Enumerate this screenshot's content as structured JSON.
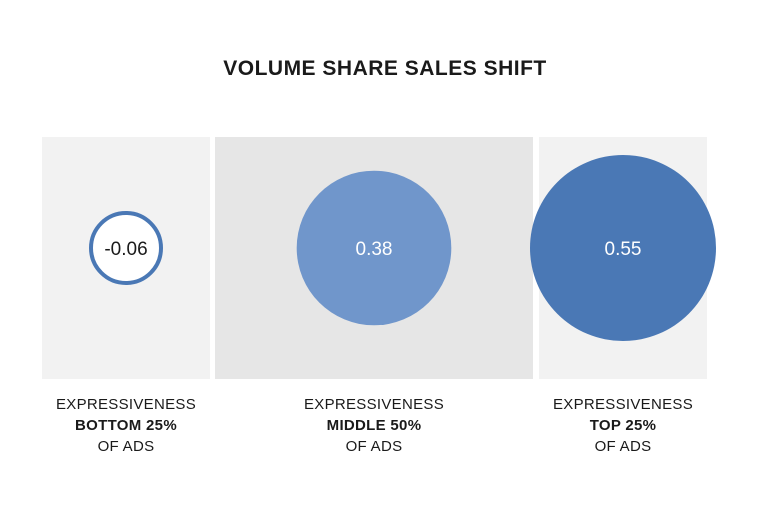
{
  "chart_data": {
    "type": "bubble",
    "title": "VOLUME SHARE SALES SHIFT",
    "categories": [
      {
        "line1": "EXPRESSIVENESS",
        "line2": "BOTTOM 25%",
        "line3": "OF ADS",
        "value": -0.06,
        "value_label": "-0.06",
        "fill": "#ffffff",
        "stroke": "#4a78b5",
        "text_color": "#1a1a1a"
      },
      {
        "line1": "EXPRESSIVENESS",
        "line2": "MIDDLE 50%",
        "line3": "OF ADS",
        "value": 0.38,
        "value_label": "0.38",
        "fill": "#7096cb",
        "stroke": "none",
        "text_color": "#ffffff"
      },
      {
        "line1": "EXPRESSIVENESS",
        "line2": "TOP 25%",
        "line3": "OF ADS",
        "value": 0.55,
        "value_label": "0.55",
        "fill": "#4a78b5",
        "stroke": "none",
        "text_color": "#ffffff"
      }
    ]
  },
  "colors": {
    "panel_light": "#f2f2f2",
    "panel_mid": "#e6e6e6",
    "accent": "#4a78b5"
  }
}
